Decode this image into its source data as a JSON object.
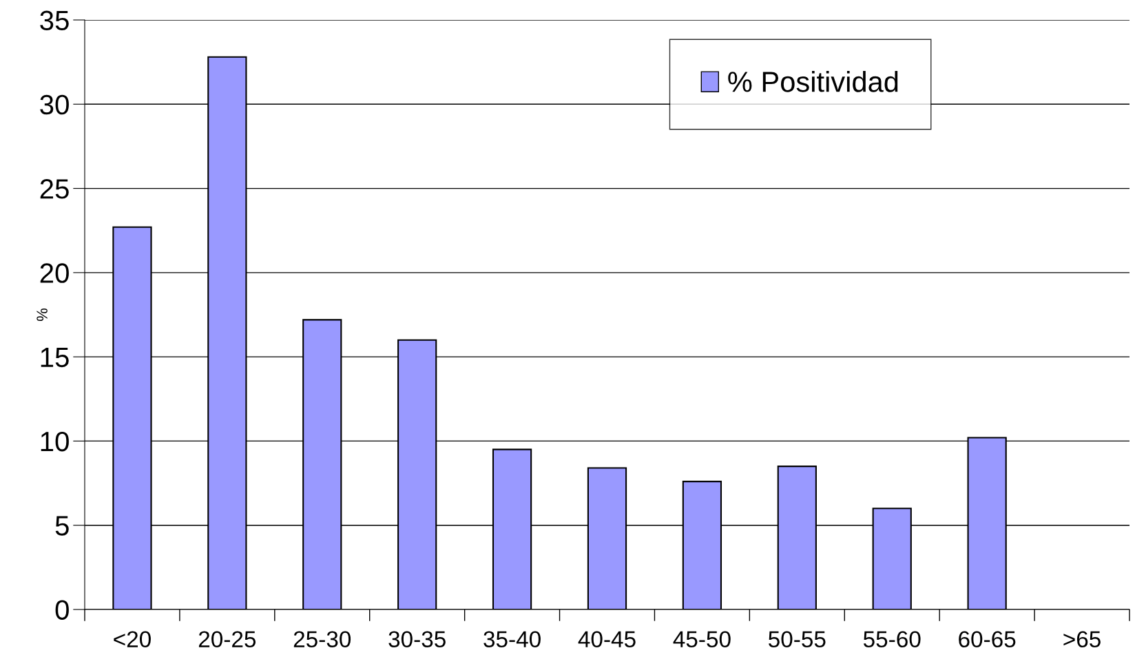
{
  "chart_data": {
    "type": "bar",
    "ylabel": "%",
    "categories": [
      "<20",
      "20-25",
      "25-30",
      "30-35",
      "35-40",
      "40-45",
      "45-50",
      "50-55",
      "55-60",
      "60-65",
      ">65"
    ],
    "series": [
      {
        "name": "% Positividad",
        "color": "#9999ff",
        "values": [
          22.7,
          32.8,
          17.2,
          16.0,
          9.5,
          8.4,
          7.6,
          8.5,
          6.0,
          10.2,
          null
        ]
      }
    ],
    "ylim": [
      0,
      35
    ],
    "yticks": [
      0,
      5,
      10,
      15,
      20,
      25,
      30,
      35
    ],
    "grid": "y",
    "legend": "top right"
  }
}
